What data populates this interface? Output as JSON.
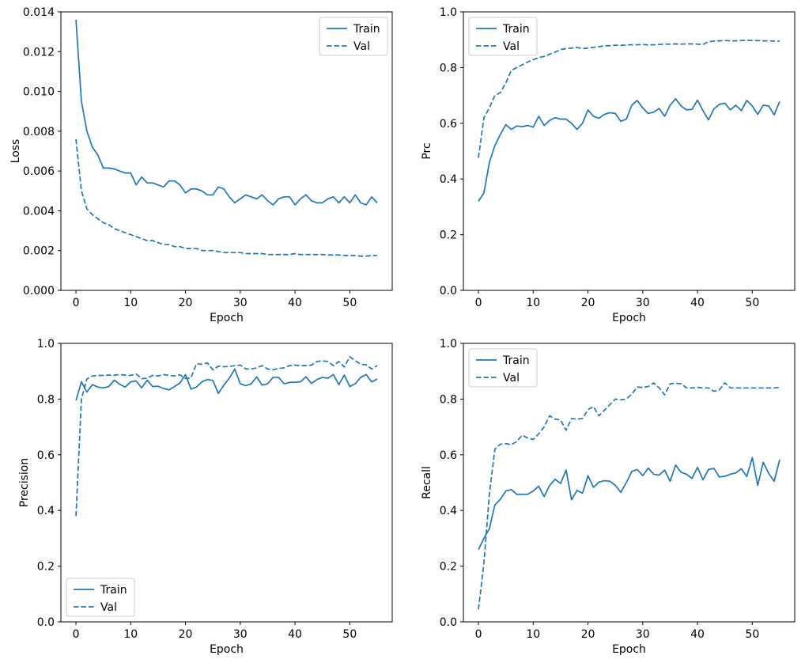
{
  "figure": {
    "background": "#ffffff",
    "line_color": "#1f77b4",
    "spine_color": "#000000",
    "legend_edge_color": "#cccccc",
    "legend_bg_color": "#ffffff"
  },
  "chart_data": [
    {
      "id": "loss",
      "type": "line",
      "title": "",
      "xlabel": "Epoch",
      "ylabel": "Loss",
      "xlim": [
        -2.75,
        57.75
      ],
      "ylim": [
        0,
        0.014
      ],
      "xticks": [
        0,
        10,
        20,
        30,
        40,
        50
      ],
      "xtick_labels": [
        "0",
        "10",
        "20",
        "30",
        "40",
        "50"
      ],
      "yticks": [
        0,
        0.002,
        0.004,
        0.006,
        0.008,
        0.01,
        0.012,
        0.014
      ],
      "ytick_labels": [
        "0.000",
        "0.002",
        "0.004",
        "0.006",
        "0.008",
        "0.010",
        "0.012",
        "0.014"
      ],
      "grid": false,
      "legend_position": "upper-right",
      "ylabel_offset": 53,
      "series": [
        {
          "name": "Train",
          "style": "solid",
          "values": [
            0.0136,
            0.0095,
            0.008,
            0.0072,
            0.0068,
            0.00615,
            0.00615,
            0.0061,
            0.006,
            0.0059,
            0.0059,
            0.0053,
            0.0057,
            0.0054,
            0.0054,
            0.0053,
            0.0052,
            0.0055,
            0.0055,
            0.0053,
            0.0049,
            0.0051,
            0.0051,
            0.005,
            0.0048,
            0.0048,
            0.0052,
            0.0051,
            0.0047,
            0.0044,
            0.0046,
            0.0048,
            0.0047,
            0.0046,
            0.0048,
            0.0045,
            0.0043,
            0.0046,
            0.0047,
            0.0047,
            0.0043,
            0.0046,
            0.0048,
            0.0045,
            0.0044,
            0.0044,
            0.0046,
            0.0047,
            0.0044,
            0.0047,
            0.0044,
            0.0048,
            0.0044,
            0.0043,
            0.0047,
            0.0044
          ]
        },
        {
          "name": "Val",
          "style": "dashed",
          "values": [
            0.0076,
            0.005,
            0.0041,
            0.0038,
            0.0036,
            0.0034,
            0.0033,
            0.0031,
            0.003,
            0.0029,
            0.0028,
            0.0027,
            0.0026,
            0.0025,
            0.0025,
            0.0024,
            0.0023,
            0.0023,
            0.0022,
            0.0022,
            0.0021,
            0.0021,
            0.0021,
            0.002,
            0.002,
            0.002,
            0.00195,
            0.0019,
            0.0019,
            0.0019,
            0.0019,
            0.00185,
            0.00185,
            0.00185,
            0.00185,
            0.0018,
            0.0018,
            0.0018,
            0.0018,
            0.0018,
            0.00185,
            0.0018,
            0.0018,
            0.0018,
            0.0018,
            0.0018,
            0.00178,
            0.00178,
            0.00178,
            0.00175,
            0.00175,
            0.00175,
            0.00172,
            0.00172,
            0.00175,
            0.00175
          ]
        }
      ]
    },
    {
      "id": "prc",
      "type": "line",
      "title": "",
      "xlabel": "Epoch",
      "ylabel": "Prc",
      "xlim": [
        -2.75,
        57.75
      ],
      "ylim": [
        0,
        1.0
      ],
      "xticks": [
        0,
        10,
        20,
        30,
        40,
        50
      ],
      "xtick_labels": [
        "0",
        "10",
        "20",
        "30",
        "40",
        "50"
      ],
      "yticks": [
        0,
        0.2,
        0.4,
        0.6,
        0.8,
        1.0
      ],
      "ytick_labels": [
        "0.0",
        "0.2",
        "0.4",
        "0.6",
        "0.8",
        "1.0"
      ],
      "grid": false,
      "legend_position": "upper-left",
      "ylabel_offset": 42,
      "series": [
        {
          "name": "Train",
          "style": "solid",
          "values": [
            0.32,
            0.35,
            0.46,
            0.52,
            0.56,
            0.595,
            0.578,
            0.59,
            0.588,
            0.592,
            0.586,
            0.625,
            0.592,
            0.61,
            0.62,
            0.615,
            0.615,
            0.6,
            0.578,
            0.6,
            0.648,
            0.625,
            0.618,
            0.632,
            0.638,
            0.635,
            0.607,
            0.615,
            0.665,
            0.682,
            0.655,
            0.635,
            0.64,
            0.653,
            0.625,
            0.665,
            0.688,
            0.662,
            0.648,
            0.65,
            0.683,
            0.645,
            0.612,
            0.652,
            0.668,
            0.672,
            0.648,
            0.665,
            0.645,
            0.682,
            0.662,
            0.632,
            0.665,
            0.662,
            0.63,
            0.678
          ]
        },
        {
          "name": "Val",
          "style": "dashed",
          "values": [
            0.476,
            0.62,
            0.655,
            0.7,
            0.71,
            0.745,
            0.79,
            0.8,
            0.81,
            0.82,
            0.828,
            0.836,
            0.84,
            0.848,
            0.855,
            0.865,
            0.868,
            0.87,
            0.872,
            0.868,
            0.87,
            0.873,
            0.875,
            0.878,
            0.879,
            0.88,
            0.88,
            0.881,
            0.882,
            0.882,
            0.883,
            0.881,
            0.882,
            0.883,
            0.884,
            0.884,
            0.885,
            0.884,
            0.885,
            0.885,
            0.884,
            0.883,
            0.893,
            0.895,
            0.896,
            0.897,
            0.896,
            0.896,
            0.897,
            0.898,
            0.897,
            0.897,
            0.896,
            0.896,
            0.895,
            0.895
          ]
        }
      ]
    },
    {
      "id": "precision",
      "type": "line",
      "title": "",
      "xlabel": "Epoch",
      "ylabel": "Precision",
      "xlim": [
        -2.75,
        57.75
      ],
      "ylim": [
        0,
        1.0
      ],
      "xticks": [
        0,
        10,
        20,
        30,
        40,
        50
      ],
      "xtick_labels": [
        "0",
        "10",
        "20",
        "30",
        "40",
        "50"
      ],
      "yticks": [
        0,
        0.2,
        0.4,
        0.6,
        0.8,
        1.0
      ],
      "ytick_labels": [
        "0.0",
        "0.2",
        "0.4",
        "0.6",
        "0.8",
        "1.0"
      ],
      "grid": false,
      "legend_position": "lower-left",
      "ylabel_offset": 42,
      "series": [
        {
          "name": "Train",
          "style": "solid",
          "values": [
            0.795,
            0.862,
            0.825,
            0.852,
            0.843,
            0.84,
            0.845,
            0.868,
            0.853,
            0.843,
            0.862,
            0.865,
            0.84,
            0.868,
            0.845,
            0.846,
            0.838,
            0.833,
            0.845,
            0.858,
            0.888,
            0.836,
            0.843,
            0.862,
            0.87,
            0.867,
            0.82,
            0.85,
            0.875,
            0.908,
            0.855,
            0.848,
            0.855,
            0.88,
            0.85,
            0.855,
            0.878,
            0.878,
            0.855,
            0.86,
            0.86,
            0.862,
            0.88,
            0.856,
            0.87,
            0.878,
            0.875,
            0.888,
            0.852,
            0.886,
            0.845,
            0.855,
            0.878,
            0.888,
            0.862,
            0.872
          ]
        },
        {
          "name": "Val",
          "style": "dashed",
          "values": [
            0.38,
            0.8,
            0.872,
            0.883,
            0.885,
            0.885,
            0.886,
            0.886,
            0.888,
            0.886,
            0.885,
            0.89,
            0.873,
            0.875,
            0.885,
            0.883,
            0.888,
            0.885,
            0.883,
            0.887,
            0.874,
            0.876,
            0.927,
            0.925,
            0.93,
            0.905,
            0.918,
            0.916,
            0.917,
            0.92,
            0.922,
            0.908,
            0.908,
            0.912,
            0.92,
            0.908,
            0.905,
            0.91,
            0.912,
            0.92,
            0.922,
            0.92,
            0.92,
            0.922,
            0.935,
            0.937,
            0.935,
            0.92,
            0.935,
            0.915,
            0.952,
            0.938,
            0.925,
            0.923,
            0.908,
            0.92
          ]
        }
      ]
    },
    {
      "id": "recall",
      "type": "line",
      "title": "",
      "xlabel": "Epoch",
      "ylabel": "Recall",
      "xlim": [
        -2.75,
        57.75
      ],
      "ylim": [
        0,
        1.0
      ],
      "xticks": [
        0,
        10,
        20,
        30,
        40,
        50
      ],
      "xtick_labels": [
        "0",
        "10",
        "20",
        "30",
        "40",
        "50"
      ],
      "yticks": [
        0,
        0.2,
        0.4,
        0.6,
        0.8,
        1.0
      ],
      "ytick_labels": [
        "0.0",
        "0.2",
        "0.4",
        "0.6",
        "0.8",
        "1.0"
      ],
      "grid": false,
      "legend_position": "upper-left",
      "ylabel_offset": 42,
      "series": [
        {
          "name": "Train",
          "style": "solid",
          "values": [
            0.26,
            0.3,
            0.335,
            0.42,
            0.44,
            0.47,
            0.475,
            0.458,
            0.458,
            0.458,
            0.47,
            0.487,
            0.45,
            0.49,
            0.512,
            0.497,
            0.545,
            0.438,
            0.472,
            0.462,
            0.525,
            0.483,
            0.502,
            0.507,
            0.505,
            0.49,
            0.465,
            0.5,
            0.54,
            0.547,
            0.525,
            0.552,
            0.53,
            0.527,
            0.545,
            0.505,
            0.563,
            0.537,
            0.53,
            0.515,
            0.555,
            0.51,
            0.547,
            0.551,
            0.52,
            0.523,
            0.53,
            0.535,
            0.55,
            0.522,
            0.59,
            0.49,
            0.573,
            0.533,
            0.505,
            0.582
          ]
        },
        {
          "name": "Val",
          "style": "dashed",
          "values": [
            0.045,
            0.21,
            0.46,
            0.62,
            0.638,
            0.64,
            0.636,
            0.648,
            0.67,
            0.66,
            0.655,
            0.675,
            0.7,
            0.74,
            0.728,
            0.725,
            0.688,
            0.73,
            0.728,
            0.73,
            0.762,
            0.773,
            0.74,
            0.76,
            0.78,
            0.8,
            0.797,
            0.8,
            0.818,
            0.843,
            0.842,
            0.845,
            0.858,
            0.84,
            0.815,
            0.855,
            0.857,
            0.855,
            0.84,
            0.84,
            0.842,
            0.84,
            0.84,
            0.828,
            0.833,
            0.858,
            0.84,
            0.84,
            0.84,
            0.84,
            0.84,
            0.84,
            0.84,
            0.84,
            0.84,
            0.842
          ]
        }
      ]
    }
  ]
}
